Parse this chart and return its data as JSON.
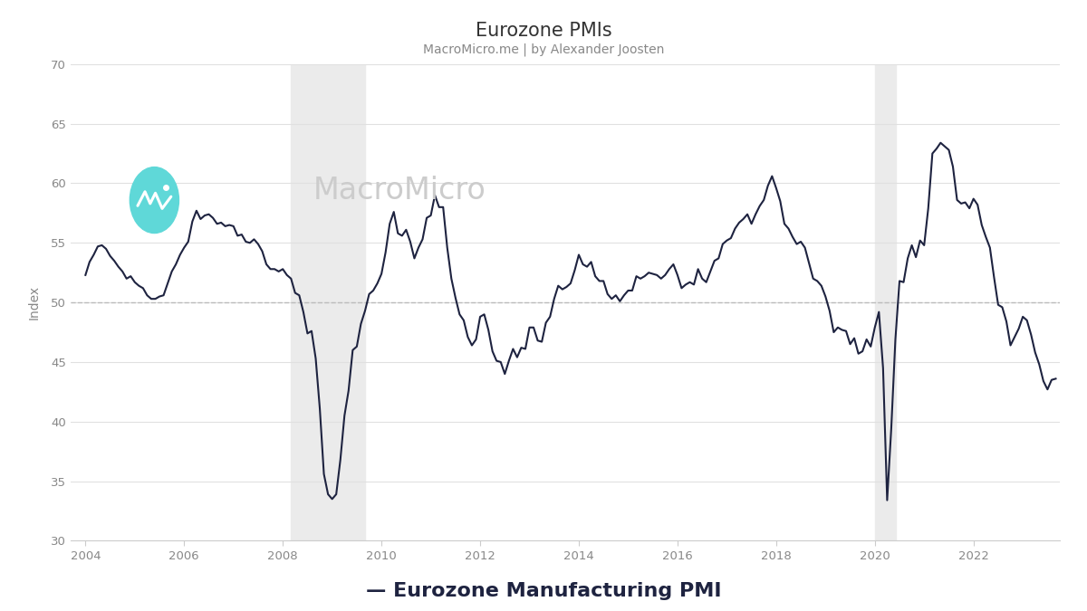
{
  "title": "Eurozone PMIs",
  "subtitle": "MacroMicro.me | by Alexander Joosten",
  "ylabel": "Index",
  "legend_label": "— Eurozone Manufacturing PMI",
  "line_color": "#1e2340",
  "background_color": "#ffffff",
  "recession_shading_1": {
    "start": 2008.17,
    "end": 2009.67
  },
  "recession_shading_2": {
    "start": 2020.0,
    "end": 2020.42
  },
  "recession_color": "#ebebeb",
  "dashed_line_y": 50,
  "dashed_color": "#bbbbbb",
  "grid_color": "#e0e0e0",
  "ylim": [
    30,
    70
  ],
  "yticks": [
    30,
    35,
    40,
    45,
    50,
    55,
    60,
    65,
    70
  ],
  "xlim_start": 2003.7,
  "xlim_end": 2023.75,
  "xtick_years": [
    2004,
    2006,
    2008,
    2010,
    2012,
    2014,
    2016,
    2018,
    2020,
    2022
  ],
  "watermark_text": "MacroMicro",
  "watermark_color": "#cccccc",
  "watermark_icon_color": "#5fd8d8",
  "tick_label_color": "#888888",
  "title_color": "#333333",
  "subtitle_color": "#888888",
  "data": [
    [
      2004.0,
      52.3
    ],
    [
      2004.083,
      53.4
    ],
    [
      2004.167,
      54.0
    ],
    [
      2004.25,
      54.7
    ],
    [
      2004.333,
      54.8
    ],
    [
      2004.417,
      54.5
    ],
    [
      2004.5,
      53.9
    ],
    [
      2004.583,
      53.5
    ],
    [
      2004.667,
      53.0
    ],
    [
      2004.75,
      52.6
    ],
    [
      2004.833,
      52.0
    ],
    [
      2004.917,
      52.2
    ],
    [
      2005.0,
      51.7
    ],
    [
      2005.083,
      51.4
    ],
    [
      2005.167,
      51.2
    ],
    [
      2005.25,
      50.6
    ],
    [
      2005.333,
      50.3
    ],
    [
      2005.417,
      50.3
    ],
    [
      2005.5,
      50.5
    ],
    [
      2005.583,
      50.6
    ],
    [
      2005.667,
      51.6
    ],
    [
      2005.75,
      52.6
    ],
    [
      2005.833,
      53.2
    ],
    [
      2005.917,
      54.0
    ],
    [
      2006.0,
      54.6
    ],
    [
      2006.083,
      55.1
    ],
    [
      2006.167,
      56.8
    ],
    [
      2006.25,
      57.7
    ],
    [
      2006.333,
      57.0
    ],
    [
      2006.417,
      57.3
    ],
    [
      2006.5,
      57.4
    ],
    [
      2006.583,
      57.1
    ],
    [
      2006.667,
      56.6
    ],
    [
      2006.75,
      56.7
    ],
    [
      2006.833,
      56.4
    ],
    [
      2006.917,
      56.5
    ],
    [
      2007.0,
      56.4
    ],
    [
      2007.083,
      55.6
    ],
    [
      2007.167,
      55.7
    ],
    [
      2007.25,
      55.1
    ],
    [
      2007.333,
      55.0
    ],
    [
      2007.417,
      55.3
    ],
    [
      2007.5,
      54.9
    ],
    [
      2007.583,
      54.3
    ],
    [
      2007.667,
      53.2
    ],
    [
      2007.75,
      52.8
    ],
    [
      2007.833,
      52.8
    ],
    [
      2007.917,
      52.6
    ],
    [
      2008.0,
      52.8
    ],
    [
      2008.083,
      52.3
    ],
    [
      2008.167,
      52.0
    ],
    [
      2008.25,
      50.8
    ],
    [
      2008.333,
      50.6
    ],
    [
      2008.417,
      49.2
    ],
    [
      2008.5,
      47.4
    ],
    [
      2008.583,
      47.6
    ],
    [
      2008.667,
      45.3
    ],
    [
      2008.75,
      41.1
    ],
    [
      2008.833,
      35.6
    ],
    [
      2008.917,
      33.9
    ],
    [
      2009.0,
      33.5
    ],
    [
      2009.083,
      33.9
    ],
    [
      2009.167,
      36.8
    ],
    [
      2009.25,
      40.5
    ],
    [
      2009.333,
      42.6
    ],
    [
      2009.417,
      46.0
    ],
    [
      2009.5,
      46.3
    ],
    [
      2009.583,
      48.2
    ],
    [
      2009.667,
      49.3
    ],
    [
      2009.75,
      50.7
    ],
    [
      2009.833,
      51.0
    ],
    [
      2009.917,
      51.6
    ],
    [
      2010.0,
      52.4
    ],
    [
      2010.083,
      54.2
    ],
    [
      2010.167,
      56.6
    ],
    [
      2010.25,
      57.6
    ],
    [
      2010.333,
      55.8
    ],
    [
      2010.417,
      55.6
    ],
    [
      2010.5,
      56.1
    ],
    [
      2010.583,
      55.1
    ],
    [
      2010.667,
      53.7
    ],
    [
      2010.75,
      54.6
    ],
    [
      2010.833,
      55.3
    ],
    [
      2010.917,
      57.1
    ],
    [
      2011.0,
      57.3
    ],
    [
      2011.083,
      59.0
    ],
    [
      2011.167,
      58.0
    ],
    [
      2011.25,
      58.0
    ],
    [
      2011.333,
      54.6
    ],
    [
      2011.417,
      52.0
    ],
    [
      2011.5,
      50.4
    ],
    [
      2011.583,
      49.0
    ],
    [
      2011.667,
      48.5
    ],
    [
      2011.75,
      47.1
    ],
    [
      2011.833,
      46.4
    ],
    [
      2011.917,
      46.9
    ],
    [
      2012.0,
      48.8
    ],
    [
      2012.083,
      49.0
    ],
    [
      2012.167,
      47.7
    ],
    [
      2012.25,
      45.9
    ],
    [
      2012.333,
      45.1
    ],
    [
      2012.417,
      45.0
    ],
    [
      2012.5,
      44.0
    ],
    [
      2012.583,
      45.1
    ],
    [
      2012.667,
      46.1
    ],
    [
      2012.75,
      45.4
    ],
    [
      2012.833,
      46.2
    ],
    [
      2012.917,
      46.1
    ],
    [
      2013.0,
      47.9
    ],
    [
      2013.083,
      47.9
    ],
    [
      2013.167,
      46.8
    ],
    [
      2013.25,
      46.7
    ],
    [
      2013.333,
      48.3
    ],
    [
      2013.417,
      48.8
    ],
    [
      2013.5,
      50.3
    ],
    [
      2013.583,
      51.4
    ],
    [
      2013.667,
      51.1
    ],
    [
      2013.75,
      51.3
    ],
    [
      2013.833,
      51.6
    ],
    [
      2013.917,
      52.7
    ],
    [
      2014.0,
      54.0
    ],
    [
      2014.083,
      53.2
    ],
    [
      2014.167,
      53.0
    ],
    [
      2014.25,
      53.4
    ],
    [
      2014.333,
      52.2
    ],
    [
      2014.417,
      51.8
    ],
    [
      2014.5,
      51.8
    ],
    [
      2014.583,
      50.7
    ],
    [
      2014.667,
      50.3
    ],
    [
      2014.75,
      50.6
    ],
    [
      2014.833,
      50.1
    ],
    [
      2014.917,
      50.6
    ],
    [
      2015.0,
      51.0
    ],
    [
      2015.083,
      51.0
    ],
    [
      2015.167,
      52.2
    ],
    [
      2015.25,
      52.0
    ],
    [
      2015.333,
      52.2
    ],
    [
      2015.417,
      52.5
    ],
    [
      2015.5,
      52.4
    ],
    [
      2015.583,
      52.3
    ],
    [
      2015.667,
      52.0
    ],
    [
      2015.75,
      52.3
    ],
    [
      2015.833,
      52.8
    ],
    [
      2015.917,
      53.2
    ],
    [
      2016.0,
      52.3
    ],
    [
      2016.083,
      51.2
    ],
    [
      2016.167,
      51.5
    ],
    [
      2016.25,
      51.7
    ],
    [
      2016.333,
      51.5
    ],
    [
      2016.417,
      52.8
    ],
    [
      2016.5,
      52.0
    ],
    [
      2016.583,
      51.7
    ],
    [
      2016.667,
      52.6
    ],
    [
      2016.75,
      53.5
    ],
    [
      2016.833,
      53.7
    ],
    [
      2016.917,
      54.9
    ],
    [
      2017.0,
      55.2
    ],
    [
      2017.083,
      55.4
    ],
    [
      2017.167,
      56.2
    ],
    [
      2017.25,
      56.7
    ],
    [
      2017.333,
      57.0
    ],
    [
      2017.417,
      57.4
    ],
    [
      2017.5,
      56.6
    ],
    [
      2017.583,
      57.4
    ],
    [
      2017.667,
      58.1
    ],
    [
      2017.75,
      58.6
    ],
    [
      2017.833,
      59.8
    ],
    [
      2017.917,
      60.6
    ],
    [
      2018.0,
      59.6
    ],
    [
      2018.083,
      58.5
    ],
    [
      2018.167,
      56.6
    ],
    [
      2018.25,
      56.2
    ],
    [
      2018.333,
      55.5
    ],
    [
      2018.417,
      54.9
    ],
    [
      2018.5,
      55.1
    ],
    [
      2018.583,
      54.6
    ],
    [
      2018.667,
      53.3
    ],
    [
      2018.75,
      52.0
    ],
    [
      2018.833,
      51.8
    ],
    [
      2018.917,
      51.4
    ],
    [
      2019.0,
      50.5
    ],
    [
      2019.083,
      49.3
    ],
    [
      2019.167,
      47.5
    ],
    [
      2019.25,
      47.9
    ],
    [
      2019.333,
      47.7
    ],
    [
      2019.417,
      47.6
    ],
    [
      2019.5,
      46.5
    ],
    [
      2019.583,
      47.0
    ],
    [
      2019.667,
      45.7
    ],
    [
      2019.75,
      45.9
    ],
    [
      2019.833,
      46.9
    ],
    [
      2019.917,
      46.3
    ],
    [
      2020.0,
      47.9
    ],
    [
      2020.083,
      49.2
    ],
    [
      2020.167,
      44.5
    ],
    [
      2020.25,
      33.4
    ],
    [
      2020.333,
      39.4
    ],
    [
      2020.417,
      46.9
    ],
    [
      2020.5,
      51.8
    ],
    [
      2020.583,
      51.7
    ],
    [
      2020.667,
      53.7
    ],
    [
      2020.75,
      54.8
    ],
    [
      2020.833,
      53.8
    ],
    [
      2020.917,
      55.2
    ],
    [
      2021.0,
      54.8
    ],
    [
      2021.083,
      57.9
    ],
    [
      2021.167,
      62.5
    ],
    [
      2021.25,
      62.9
    ],
    [
      2021.333,
      63.4
    ],
    [
      2021.417,
      63.1
    ],
    [
      2021.5,
      62.8
    ],
    [
      2021.583,
      61.4
    ],
    [
      2021.667,
      58.6
    ],
    [
      2021.75,
      58.3
    ],
    [
      2021.833,
      58.4
    ],
    [
      2021.917,
      57.9
    ],
    [
      2022.0,
      58.7
    ],
    [
      2022.083,
      58.2
    ],
    [
      2022.167,
      56.5
    ],
    [
      2022.25,
      55.5
    ],
    [
      2022.333,
      54.6
    ],
    [
      2022.417,
      52.1
    ],
    [
      2022.5,
      49.8
    ],
    [
      2022.583,
      49.6
    ],
    [
      2022.667,
      48.4
    ],
    [
      2022.75,
      46.4
    ],
    [
      2022.833,
      47.1
    ],
    [
      2022.917,
      47.8
    ],
    [
      2023.0,
      48.8
    ],
    [
      2023.083,
      48.5
    ],
    [
      2023.167,
      47.3
    ],
    [
      2023.25,
      45.8
    ],
    [
      2023.333,
      44.8
    ],
    [
      2023.417,
      43.4
    ],
    [
      2023.5,
      42.7
    ],
    [
      2023.583,
      43.5
    ],
    [
      2023.667,
      43.6
    ]
  ]
}
